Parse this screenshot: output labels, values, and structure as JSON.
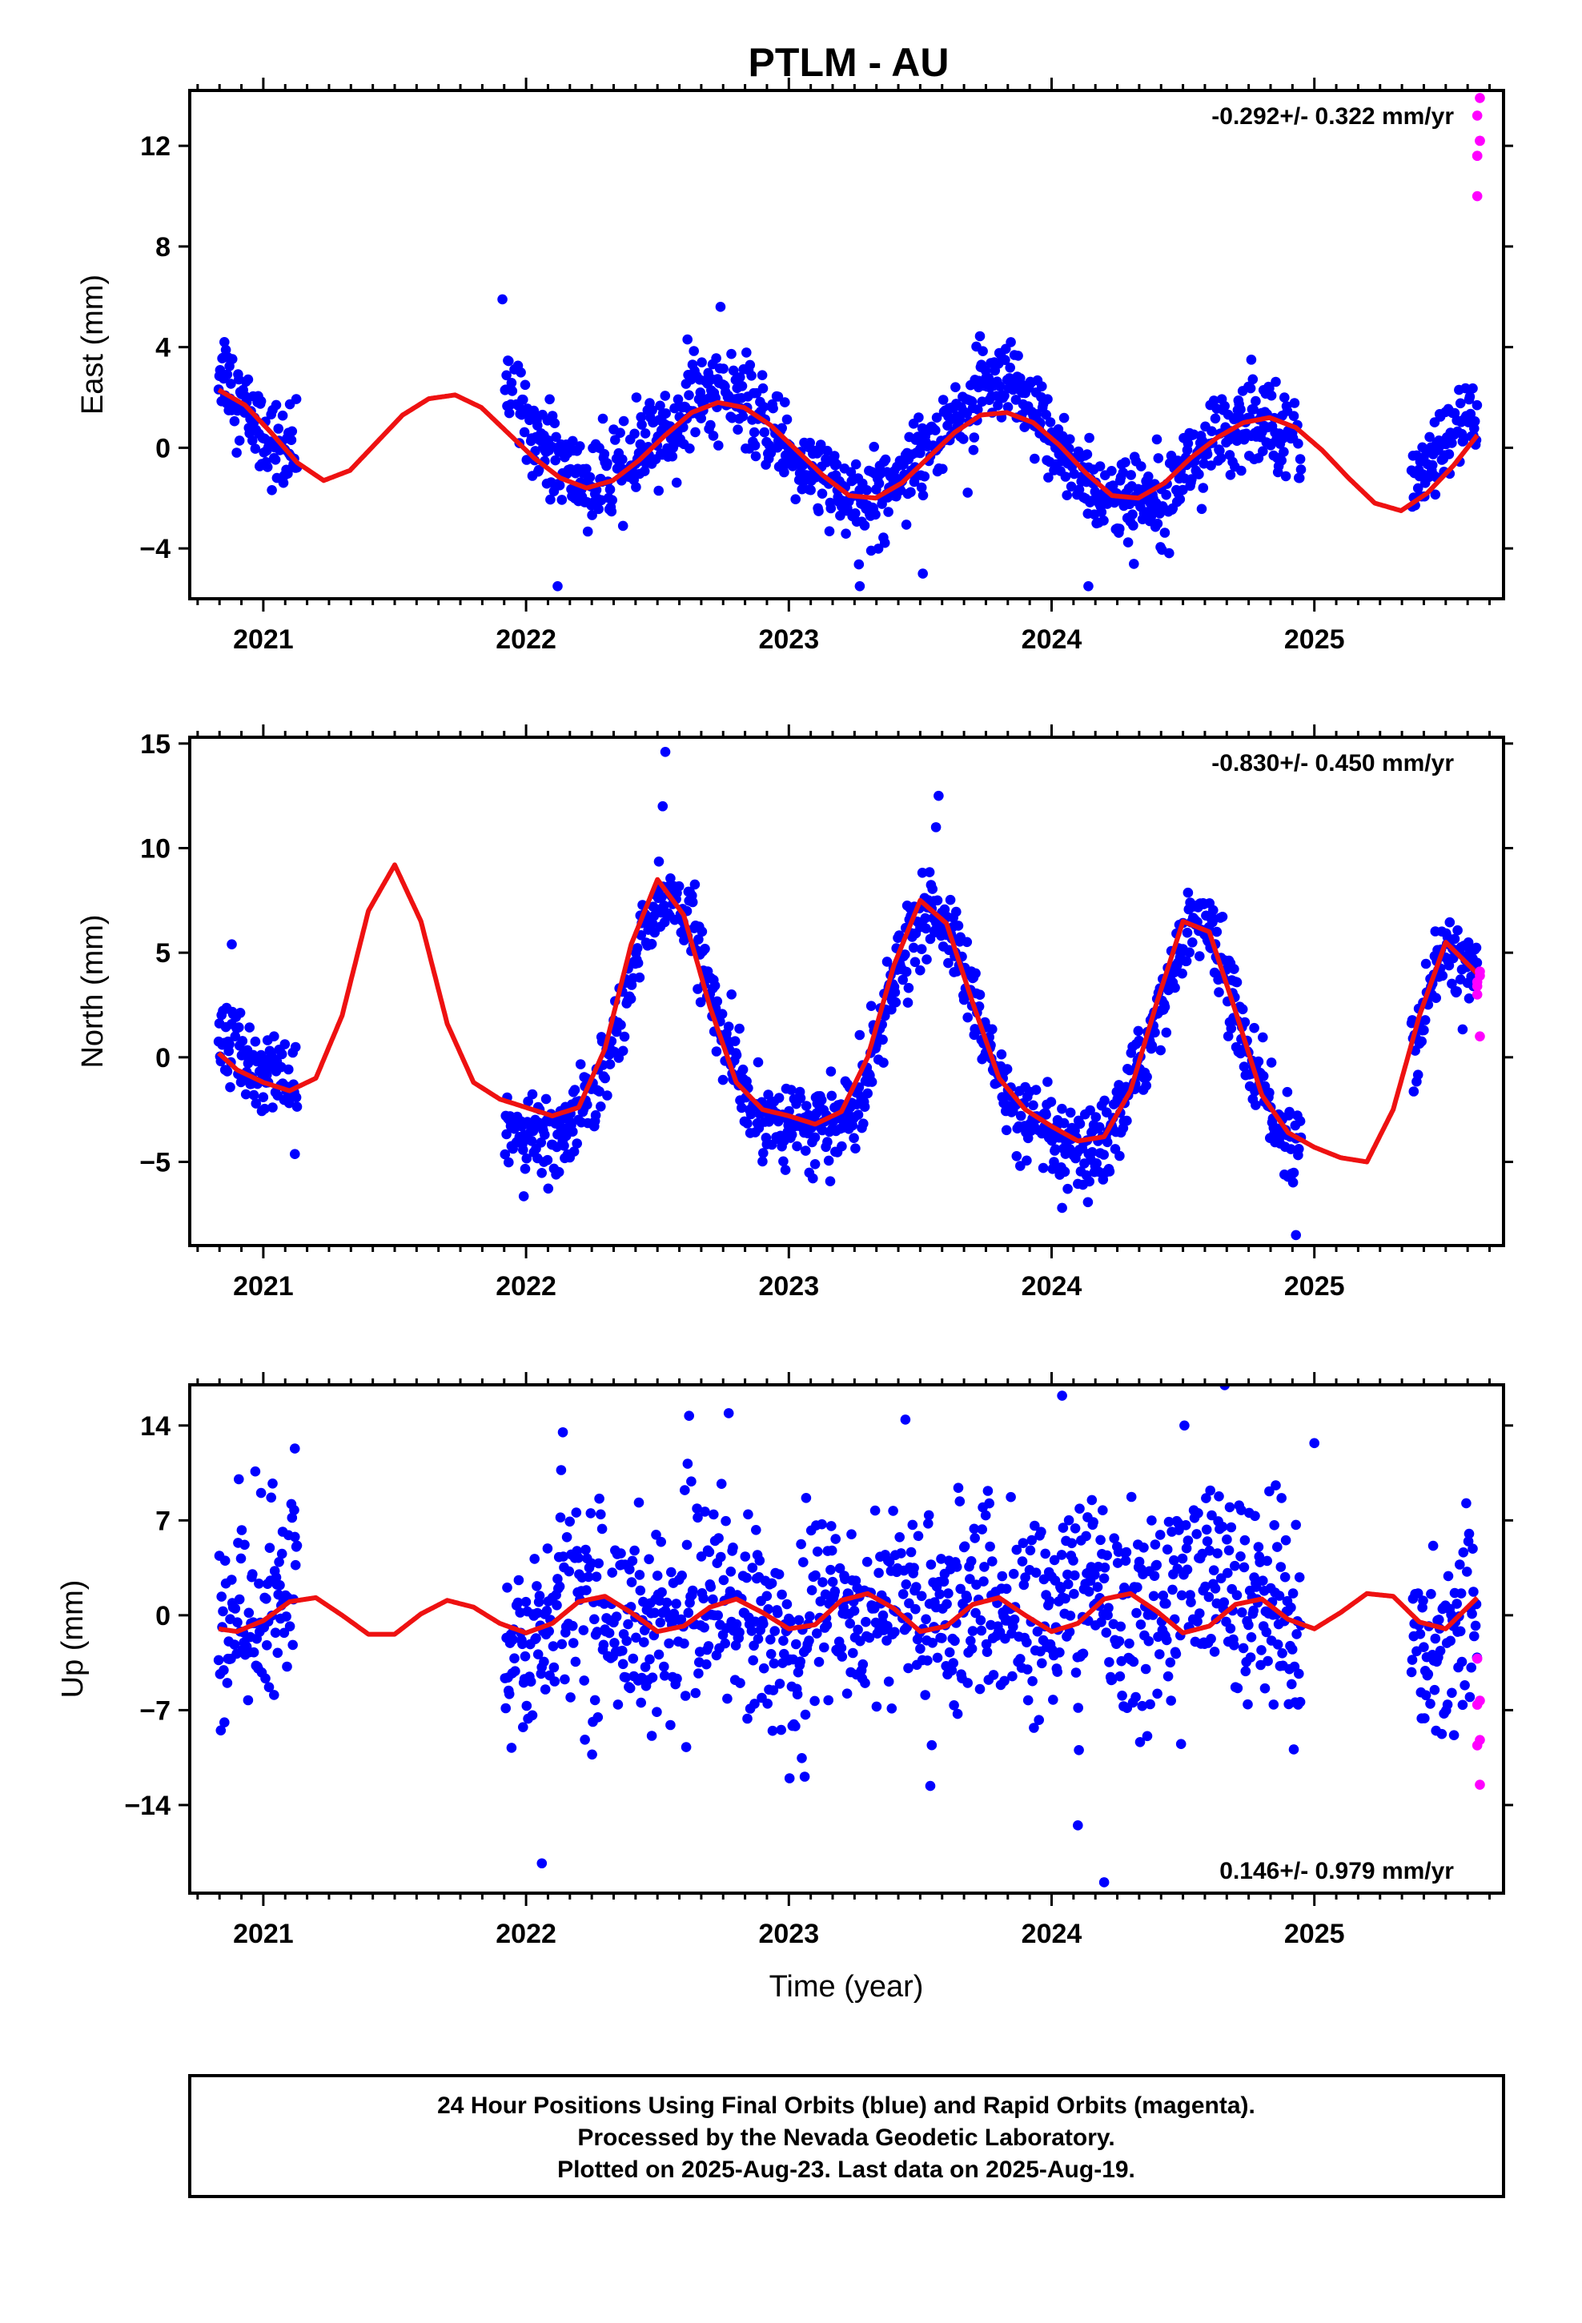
{
  "chart_data": {
    "title": "PTLM - AU",
    "xlabel": "Time (year)",
    "x_ticks": [
      "2021",
      "2022",
      "2023",
      "2024",
      "2025"
    ],
    "xlim": [
      2020.72,
      2025.72
    ],
    "colors": {
      "final": "#0000ff",
      "rapid": "#ff00ff",
      "model": "#ee1111"
    },
    "legend": [
      "24 Hour Positions Using Final Orbits (blue) and Rapid Orbits (magenta).",
      "Processed by the Nevada Geodetic Laboratory.",
      "Plotted on 2025-Aug-23. Last data on 2025-Aug-19."
    ],
    "panels": [
      {
        "type": "scatter",
        "name": "east",
        "ylabel": "East (mm)",
        "ylim": [
          -6,
          14.2
        ],
        "y_ticks": [
          -4,
          0,
          4,
          8,
          12
        ],
        "y_tick_labels": [
          "−4",
          "0",
          "4",
          "8",
          "12"
        ],
        "rate": "-0.292+/- 0.322 mm/yr",
        "rate_pos": "top-right",
        "segments": [
          [
            2020.83,
            2021.13
          ],
          [
            2021.92,
            2022.48
          ],
          [
            2022.48,
            2022.96
          ],
          [
            2022.96,
            2023.5
          ],
          [
            2023.5,
            2023.96
          ],
          [
            2023.96,
            2024.5
          ],
          [
            2024.5,
            2024.95
          ],
          [
            2025.37,
            2025.62
          ]
        ],
        "model": {
          "x": [
            2020.83,
            2020.93,
            2021.03,
            2021.13,
            2021.23,
            2021.33,
            2021.43,
            2021.53,
            2021.63,
            2021.73,
            2021.83,
            2021.93,
            2022.03,
            2022.13,
            2022.23,
            2022.33,
            2022.43,
            2022.53,
            2022.63,
            2022.73,
            2022.83,
            2022.93,
            2023.03,
            2023.13,
            2023.23,
            2023.33,
            2023.43,
            2023.53,
            2023.63,
            2023.73,
            2023.83,
            2023.93,
            2024.03,
            2024.13,
            2024.23,
            2024.33,
            2024.43,
            2024.53,
            2024.63,
            2024.73,
            2024.83,
            2024.93,
            2025.03,
            2025.13,
            2025.23,
            2025.33,
            2025.43,
            2025.53,
            2025.62
          ],
          "y": [
            2.3,
            1.7,
            0.6,
            -0.6,
            -1.3,
            -0.9,
            0.2,
            1.3,
            1.95,
            2.1,
            1.6,
            0.6,
            -0.4,
            -1.2,
            -1.6,
            -1.3,
            -0.5,
            0.5,
            1.4,
            1.8,
            1.6,
            0.9,
            -0.1,
            -1.1,
            -1.9,
            -2.0,
            -1.4,
            -0.4,
            0.6,
            1.3,
            1.4,
            1.0,
            0.1,
            -1.0,
            -1.9,
            -2.0,
            -1.4,
            -0.4,
            0.4,
            1.0,
            1.2,
            0.8,
            -0.1,
            -1.2,
            -2.2,
            -2.5,
            -1.8,
            -0.7,
            0.5
          ]
        },
        "final": {
          "sample_x": [
            2020.85,
            2020.9,
            2020.95,
            2021.0,
            2021.05,
            2021.1,
            2021.95,
            2022.05,
            2022.15,
            2022.25,
            2022.35,
            2022.45,
            2022.55,
            2022.65,
            2022.75,
            2022.85,
            2022.95,
            2023.05,
            2023.15,
            2023.25,
            2023.35,
            2023.45,
            2023.55,
            2023.65,
            2023.75,
            2023.85,
            2023.95,
            2024.05,
            2024.15,
            2024.25,
            2024.35,
            2024.45,
            2024.55,
            2024.65,
            2024.75,
            2024.85,
            2024.92,
            2025.4,
            2025.48,
            2025.56
          ],
          "sample_y": [
            3.2,
            2.0,
            1.3,
            0.5,
            0.1,
            -0.4,
            2.5,
            0.4,
            -0.8,
            -1.6,
            -1.1,
            -0.2,
            0.8,
            2.0,
            2.4,
            1.4,
            0.6,
            -0.6,
            -1.4,
            -2.5,
            -1.8,
            -0.6,
            0.4,
            1.3,
            2.4,
            2.2,
            1.0,
            -0.3,
            -1.5,
            -2.2,
            -2.1,
            -1.3,
            -0.2,
            0.3,
            0.8,
            1.0,
            0.6,
            -1.3,
            0.0,
            1.0
          ],
          "noise": 1.0
        },
        "rapid": {
          "x": [
            2025.62,
            2025.62,
            2025.63,
            2025.63,
            2025.62,
            2025.63,
            2025.62
          ],
          "y": [
            10.0,
            11.6,
            12.2,
            12.2,
            13.2,
            13.9,
            11.6
          ]
        },
        "outliers": {
          "x": [
            2021.91,
            2022.12,
            2022.42,
            2022.74,
            2023.27,
            2023.51,
            2024.14,
            2024.76
          ],
          "y": [
            5.9,
            -5.5,
            2.0,
            5.6,
            -5.5,
            -5.0,
            -5.5,
            3.5
          ]
        }
      },
      {
        "type": "scatter",
        "name": "north",
        "ylabel": "North (mm)",
        "ylim": [
          -9,
          15.3
        ],
        "y_ticks": [
          -5,
          0,
          5,
          10,
          15
        ],
        "y_tick_labels": [
          "−5",
          "0",
          "5",
          "10",
          "15"
        ],
        "rate": "-0.830+/- 0.450 mm/yr",
        "rate_pos": "top-right",
        "segments": [
          [
            2020.83,
            2021.13
          ],
          [
            2021.92,
            2022.5
          ],
          [
            2022.5,
            2023.1
          ],
          [
            2023.1,
            2023.5
          ],
          [
            2023.5,
            2024.1
          ],
          [
            2024.1,
            2024.5
          ],
          [
            2024.5,
            2024.95
          ],
          [
            2025.37,
            2025.62
          ]
        ],
        "model": {
          "x": [
            2020.83,
            2020.9,
            2021.0,
            2021.1,
            2021.2,
            2021.3,
            2021.4,
            2021.5,
            2021.6,
            2021.7,
            2021.8,
            2021.9,
            2022.0,
            2022.1,
            2022.2,
            2022.3,
            2022.4,
            2022.5,
            2022.6,
            2022.7,
            2022.8,
            2022.9,
            2023.0,
            2023.1,
            2023.2,
            2023.3,
            2023.4,
            2023.5,
            2023.6,
            2023.7,
            2023.8,
            2023.9,
            2024.0,
            2024.1,
            2024.2,
            2024.3,
            2024.4,
            2024.5,
            2024.6,
            2024.7,
            2024.8,
            2024.9,
            2025.0,
            2025.1,
            2025.2,
            2025.3,
            2025.4,
            2025.5,
            2025.62
          ],
          "y": [
            0.2,
            -0.6,
            -1.2,
            -1.6,
            -1.0,
            2.0,
            7.0,
            9.2,
            6.5,
            1.6,
            -1.2,
            -2.0,
            -2.4,
            -2.8,
            -2.4,
            0.4,
            5.4,
            8.5,
            6.8,
            2.4,
            -1.2,
            -2.5,
            -2.8,
            -3.2,
            -2.6,
            0.0,
            4.4,
            7.5,
            6.4,
            2.6,
            -1.0,
            -2.5,
            -3.3,
            -4.0,
            -3.8,
            -1.6,
            2.6,
            6.5,
            6.0,
            2.2,
            -1.8,
            -3.6,
            -4.3,
            -4.8,
            -5.0,
            -2.5,
            2.0,
            5.5,
            4.0
          ]
        },
        "final": {
          "sample_x": [
            2020.85,
            2020.92,
            2020.98,
            2021.05,
            2021.11,
            2021.95,
            2022.05,
            2022.15,
            2022.25,
            2022.35,
            2022.45,
            2022.55,
            2022.65,
            2022.75,
            2022.85,
            2022.95,
            2023.05,
            2023.15,
            2023.25,
            2023.35,
            2023.45,
            2023.55,
            2023.65,
            2023.75,
            2023.85,
            2023.95,
            2024.05,
            2024.15,
            2024.25,
            2024.35,
            2024.45,
            2024.55,
            2024.65,
            2024.75,
            2024.85,
            2024.92,
            2025.4,
            2025.48,
            2025.56
          ],
          "sample_y": [
            1.0,
            0.0,
            -0.5,
            -1.0,
            -1.8,
            -3.5,
            -4.0,
            -3.5,
            -2.0,
            1.5,
            6.0,
            8.0,
            5.5,
            1.0,
            -2.5,
            -3.0,
            -3.2,
            -3.5,
            -2.5,
            1.5,
            5.5,
            7.0,
            5.0,
            0.5,
            -2.5,
            -3.5,
            -4.5,
            -5.0,
            -3.0,
            0.0,
            4.0,
            7.0,
            4.5,
            0.0,
            -3.0,
            -4.5,
            1.0,
            5.0,
            4.5
          ],
          "noise": 1.1
        },
        "rapid": {
          "x": [
            2025.62,
            2025.62,
            2025.63,
            2025.63,
            2025.62,
            2025.63
          ],
          "y": [
            3.0,
            3.4,
            3.9,
            4.1,
            3.6,
            1.0
          ]
        },
        "outliers": {
          "x": [
            2022.53,
            2022.52,
            2023.57,
            2023.56,
            2024.04,
            2024.93,
            2020.88
          ],
          "y": [
            14.6,
            12.0,
            12.5,
            11.0,
            -7.2,
            -8.5,
            5.4
          ]
        }
      },
      {
        "type": "scatter",
        "name": "up",
        "ylabel": "Up (mm)",
        "ylim": [
          -20.5,
          17
        ],
        "y_ticks": [
          -14,
          -7,
          0,
          7,
          14
        ],
        "y_tick_labels": [
          "−14",
          "−7",
          "0",
          "7",
          "14"
        ],
        "rate": "0.146+/- 0.979 mm/yr",
        "rate_pos": "bottom-right",
        "segments": [
          [
            2020.83,
            2021.13
          ],
          [
            2021.92,
            2022.5
          ],
          [
            2022.5,
            2023.0
          ],
          [
            2023.0,
            2023.5
          ],
          [
            2023.5,
            2024.0
          ],
          [
            2024.0,
            2024.5
          ],
          [
            2024.5,
            2024.95
          ],
          [
            2025.37,
            2025.62
          ]
        ],
        "model": {
          "x": [
            2020.83,
            2020.9,
            2021.0,
            2021.1,
            2021.2,
            2021.3,
            2021.4,
            2021.5,
            2021.6,
            2021.7,
            2021.8,
            2021.9,
            2022.0,
            2022.1,
            2022.2,
            2022.3,
            2022.4,
            2022.5,
            2022.6,
            2022.7,
            2022.8,
            2022.9,
            2023.0,
            2023.1,
            2023.2,
            2023.3,
            2023.4,
            2023.5,
            2023.6,
            2023.7,
            2023.8,
            2023.9,
            2024.0,
            2024.1,
            2024.2,
            2024.3,
            2024.4,
            2024.5,
            2024.6,
            2024.7,
            2024.8,
            2024.9,
            2025.0,
            2025.1,
            2025.2,
            2025.3,
            2025.4,
            2025.5,
            2025.62
          ],
          "y": [
            -1.0,
            -1.2,
            -0.4,
            1.0,
            1.3,
            0.0,
            -1.4,
            -1.4,
            0.1,
            1.1,
            0.6,
            -0.6,
            -1.3,
            -0.6,
            1.0,
            1.4,
            0.2,
            -1.2,
            -0.8,
            0.6,
            1.2,
            0.2,
            -1.0,
            -0.7,
            1.1,
            1.6,
            0.5,
            -1.2,
            -0.8,
            0.8,
            1.3,
            0.0,
            -1.2,
            -0.6,
            1.2,
            1.6,
            0.3,
            -1.3,
            -0.8,
            0.8,
            1.2,
            -0.3,
            -1.0,
            0.2,
            1.6,
            1.4,
            -0.5,
            -1.0,
            1.3
          ]
        },
        "final": {
          "sample_x": [
            2020.85,
            2020.92,
            2021.0,
            2021.08,
            2021.12,
            2021.95,
            2022.05,
            2022.15,
            2022.25,
            2022.35,
            2022.45,
            2022.55,
            2022.65,
            2022.75,
            2022.85,
            2022.95,
            2023.05,
            2023.15,
            2023.25,
            2023.35,
            2023.45,
            2023.55,
            2023.65,
            2023.75,
            2023.85,
            2023.95,
            2024.05,
            2024.15,
            2024.25,
            2024.35,
            2024.45,
            2024.55,
            2024.65,
            2024.75,
            2024.85,
            2024.92,
            2025.4,
            2025.48,
            2025.56
          ],
          "sample_y": [
            -2.0,
            1.0,
            0.0,
            1.0,
            3.0,
            -4.0,
            -1.0,
            2.0,
            1.0,
            0.0,
            -1.0,
            -1.0,
            1.0,
            2.0,
            0.0,
            -2.0,
            -1.0,
            1.0,
            0.0,
            1.5,
            1.0,
            0.0,
            0.5,
            1.0,
            0.0,
            -1.0,
            1.0,
            2.0,
            0.0,
            0.0,
            1.0,
            3.0,
            3.0,
            1.0,
            0.0,
            -1.0,
            -4.0,
            -2.0,
            0.0
          ],
          "noise": 4.4
        },
        "rapid": {
          "x": [
            2025.62,
            2025.63,
            2025.62,
            2025.63,
            2025.62,
            2025.63
          ],
          "y": [
            -3.2,
            -6.3,
            -6.6,
            -9.2,
            -9.6,
            -12.5
          ]
        },
        "outliers": {
          "x": [
            2024.04,
            2024.1,
            2024.2,
            2022.06,
            2022.14,
            2025.0,
            2021.12
          ],
          "y": [
            16.2,
            -15.5,
            -19.7,
            -18.3,
            13.5,
            12.7,
            12.3
          ]
        }
      }
    ]
  }
}
